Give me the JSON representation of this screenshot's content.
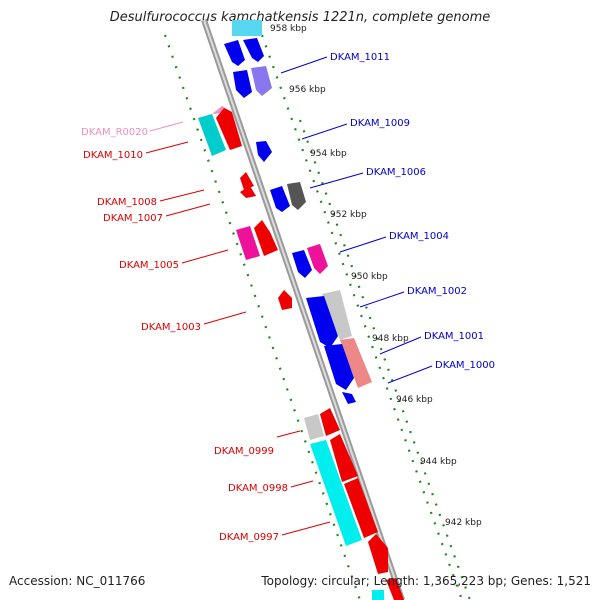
{
  "title": "Desulfurococcus kamchatkensis 1221n, complete genome",
  "footer": {
    "accession": "Accession: NC_011766",
    "summary": "Topology: circular; Length: 1,365,223 bp; Genes: 1,521"
  },
  "scale_ticks": [
    {
      "label": "958 kbp"
    },
    {
      "label": "956 kbp"
    },
    {
      "label": "954 kbp"
    },
    {
      "label": "952 kbp"
    },
    {
      "label": "950 kbp"
    },
    {
      "label": "948 kbp"
    },
    {
      "label": "946 kbp"
    },
    {
      "label": "944 kbp"
    },
    {
      "label": "942 kbp"
    }
  ],
  "gene_labels_forward": [
    {
      "label": "DKAM_1011",
      "color": "#0000cc"
    },
    {
      "label": "DKAM_1009",
      "color": "#0000cc"
    },
    {
      "label": "DKAM_1006",
      "color": "#0000cc"
    },
    {
      "label": "DKAM_1004",
      "color": "#0000cc"
    },
    {
      "label": "DKAM_1002",
      "color": "#0000cc"
    },
    {
      "label": "DKAM_1001",
      "color": "#0000cc"
    },
    {
      "label": "DKAM_1000",
      "color": "#0000cc"
    }
  ],
  "gene_labels_reverse": [
    {
      "label": "DKAM_R0020",
      "color": "#ee8fc0"
    },
    {
      "label": "DKAM_1010",
      "color": "#dd0000"
    },
    {
      "label": "DKAM_1008",
      "color": "#dd0000"
    },
    {
      "label": "DKAM_1007",
      "color": "#dd0000"
    },
    {
      "label": "DKAM_1005",
      "color": "#dd0000"
    },
    {
      "label": "DKAM_1003",
      "color": "#dd0000"
    },
    {
      "label": "DKAM_0999",
      "color": "#dd0000"
    },
    {
      "label": "DKAM_0998",
      "color": "#dd0000"
    },
    {
      "label": "DKAM_0997",
      "color": "#dd0000"
    }
  ],
  "colors": {
    "forward_cds": "#0000ee",
    "reverse_cds": "#ee0000",
    "hypothetical": "#c8c8c8",
    "cyan_feature": "#00dddd",
    "magenta_feature": "#ee1199",
    "backbone": "#888888",
    "ring_dots": "#228822"
  }
}
